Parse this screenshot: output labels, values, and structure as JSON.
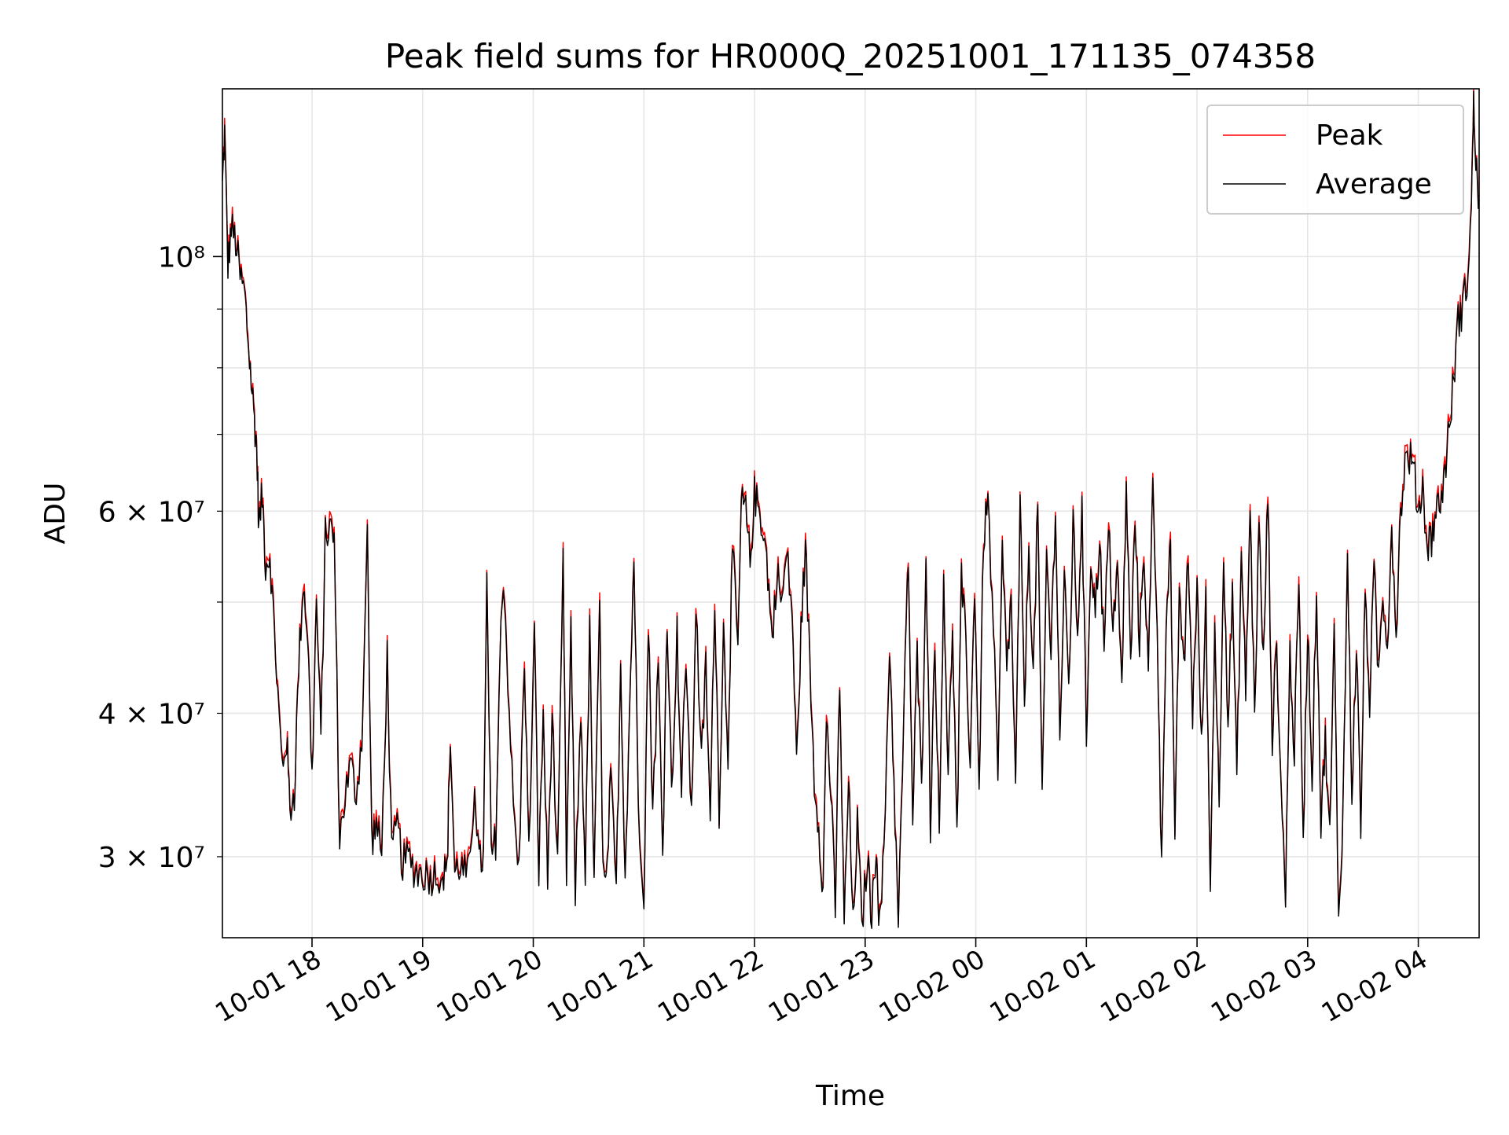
{
  "chart_data": {
    "type": "line",
    "title": "Peak field sums for HR000Q_20251001_171135_074358",
    "xlabel": "Time",
    "ylabel": "ADU",
    "yscale": "log",
    "ylim": [
      25500000,
      140000000
    ],
    "xlim_hours": [
      17.19,
      28.55
    ],
    "grid": true,
    "legend_position": "top-right",
    "x_ticks": [
      {
        "hour": 18,
        "label": "10-01 18"
      },
      {
        "hour": 19,
        "label": "10-01 19"
      },
      {
        "hour": 20,
        "label": "10-01 20"
      },
      {
        "hour": 21,
        "label": "10-01 21"
      },
      {
        "hour": 22,
        "label": "10-01 22"
      },
      {
        "hour": 23,
        "label": "10-01 23"
      },
      {
        "hour": 24,
        "label": "10-02 00"
      },
      {
        "hour": 25,
        "label": "10-02 01"
      },
      {
        "hour": 26,
        "label": "10-02 02"
      },
      {
        "hour": 27,
        "label": "10-02 03"
      },
      {
        "hour": 28,
        "label": "10-02 04"
      }
    ],
    "y_major_ticks": [
      {
        "value": 100000000,
        "label": "10⁸"
      }
    ],
    "y_minor_ticks": [
      {
        "value": 30000000,
        "label": "3 × 10⁷"
      },
      {
        "value": 40000000,
        "label": "4 × 10⁷"
      },
      {
        "value": 50000000,
        "label": ""
      },
      {
        "value": 60000000,
        "label": "6 × 10⁷"
      },
      {
        "value": 70000000,
        "label": ""
      },
      {
        "value": 80000000,
        "label": ""
      },
      {
        "value": 90000000,
        "label": ""
      }
    ],
    "series": [
      {
        "name": "Peak",
        "color": "#ff0000"
      },
      {
        "name": "Average",
        "color": "#000000"
      }
    ],
    "data_points": [
      [
        17.19,
        115000000
      ],
      [
        17.21,
        128000000
      ],
      [
        17.24,
        98000000
      ],
      [
        17.27,
        106000000
      ],
      [
        17.31,
        103000000
      ],
      [
        17.35,
        96000000
      ],
      [
        17.39,
        93000000
      ],
      [
        17.42,
        85000000
      ],
      [
        17.45,
        78000000
      ],
      [
        17.48,
        72000000
      ],
      [
        17.5,
        68000000
      ],
      [
        17.52,
        58000000
      ],
      [
        17.55,
        62000000
      ],
      [
        17.58,
        54000000
      ],
      [
        17.62,
        55000000
      ],
      [
        17.66,
        47000000
      ],
      [
        17.7,
        40000000
      ],
      [
        17.73,
        36000000
      ],
      [
        17.77,
        38000000
      ],
      [
        17.8,
        33000000
      ],
      [
        17.84,
        34000000
      ],
      [
        17.88,
        44000000
      ],
      [
        17.92,
        52000000
      ],
      [
        17.96,
        47000000
      ],
      [
        18.0,
        35000000
      ],
      [
        18.04,
        50000000
      ],
      [
        18.08,
        38000000
      ],
      [
        18.12,
        57000000
      ],
      [
        18.16,
        58000000
      ],
      [
        18.2,
        57000000
      ],
      [
        18.25,
        31000000
      ],
      [
        18.3,
        34000000
      ],
      [
        18.35,
        36000000
      ],
      [
        18.4,
        34000000
      ],
      [
        18.45,
        38000000
      ],
      [
        18.5,
        57000000
      ],
      [
        18.54,
        31000000
      ],
      [
        18.58,
        32000000
      ],
      [
        18.63,
        30000000
      ],
      [
        18.68,
        45000000
      ],
      [
        18.72,
        30000000
      ],
      [
        18.77,
        32000000
      ],
      [
        18.82,
        29500000
      ],
      [
        18.87,
        30000000
      ],
      [
        18.92,
        29300000
      ],
      [
        18.97,
        29000000
      ],
      [
        19.02,
        29000000
      ],
      [
        19.07,
        28800000
      ],
      [
        19.12,
        29000000
      ],
      [
        19.18,
        29000000
      ],
      [
        19.22,
        29100000
      ],
      [
        19.25,
        38000000
      ],
      [
        19.29,
        29000000
      ],
      [
        19.33,
        29500000
      ],
      [
        19.38,
        29000000
      ],
      [
        19.43,
        29200000
      ],
      [
        19.47,
        35000000
      ],
      [
        19.51,
        29500000
      ],
      [
        19.55,
        30000000
      ],
      [
        19.58,
        52000000
      ],
      [
        19.62,
        30000000
      ],
      [
        19.66,
        31000000
      ],
      [
        19.7,
        45000000
      ],
      [
        19.73,
        53000000
      ],
      [
        19.77,
        43000000
      ],
      [
        19.82,
        33000000
      ],
      [
        19.87,
        29000000
      ],
      [
        19.92,
        45000000
      ],
      [
        19.96,
        30000000
      ],
      [
        20.01,
        47000000
      ],
      [
        20.05,
        29000000
      ],
      [
        20.09,
        40000000
      ],
      [
        20.13,
        28500000
      ],
      [
        20.17,
        40000000
      ],
      [
        20.22,
        29000000
      ],
      [
        20.27,
        54000000
      ],
      [
        20.3,
        29000000
      ],
      [
        20.34,
        47000000
      ],
      [
        20.38,
        28000000
      ],
      [
        20.43,
        40000000
      ],
      [
        20.47,
        29000000
      ],
      [
        20.51,
        47000000
      ],
      [
        20.55,
        28000000
      ],
      [
        20.6,
        50000000
      ],
      [
        20.63,
        29000000
      ],
      [
        20.66,
        28000000
      ],
      [
        20.7,
        35000000
      ],
      [
        20.75,
        28000000
      ],
      [
        20.79,
        44000000
      ],
      [
        20.83,
        29000000
      ],
      [
        20.87,
        40000000
      ],
      [
        20.91,
        55000000
      ],
      [
        20.95,
        33000000
      ],
      [
        21.0,
        28000000
      ],
      [
        21.04,
        48000000
      ],
      [
        21.08,
        33000000
      ],
      [
        21.13,
        44000000
      ],
      [
        21.17,
        30000000
      ],
      [
        21.21,
        49000000
      ],
      [
        21.25,
        34000000
      ],
      [
        21.3,
        47000000
      ],
      [
        21.34,
        34000000
      ],
      [
        21.38,
        45000000
      ],
      [
        21.43,
        32000000
      ],
      [
        21.47,
        50000000
      ],
      [
        21.52,
        36000000
      ],
      [
        21.56,
        44000000
      ],
      [
        21.6,
        32000000
      ],
      [
        21.64,
        51000000
      ],
      [
        21.68,
        33000000
      ],
      [
        21.72,
        47000000
      ],
      [
        21.76,
        37000000
      ],
      [
        21.8,
        56000000
      ],
      [
        21.85,
        45000000
      ],
      [
        21.88,
        61000000
      ],
      [
        21.92,
        60000000
      ],
      [
        21.96,
        54000000
      ],
      [
        22.0,
        62000000
      ],
      [
        22.04,
        60000000
      ],
      [
        22.08,
        58000000
      ],
      [
        22.12,
        53000000
      ],
      [
        22.16,
        46000000
      ],
      [
        22.2,
        53000000
      ],
      [
        22.25,
        50000000
      ],
      [
        22.29,
        55000000
      ],
      [
        22.34,
        49000000
      ],
      [
        22.38,
        36000000
      ],
      [
        22.42,
        47000000
      ],
      [
        22.46,
        56000000
      ],
      [
        22.5,
        44000000
      ],
      [
        22.54,
        35000000
      ],
      [
        22.58,
        32000000
      ],
      [
        22.62,
        28000000
      ],
      [
        22.65,
        40000000
      ],
      [
        22.69,
        34000000
      ],
      [
        22.73,
        27000000
      ],
      [
        22.77,
        43000000
      ],
      [
        22.81,
        26000000
      ],
      [
        22.85,
        35000000
      ],
      [
        22.89,
        26000000
      ],
      [
        22.93,
        32000000
      ],
      [
        22.97,
        26000000
      ],
      [
        23.02,
        30000000
      ],
      [
        23.06,
        26500000
      ],
      [
        23.1,
        31000000
      ],
      [
        23.13,
        26000000
      ],
      [
        23.17,
        30000000
      ],
      [
        23.22,
        46000000
      ],
      [
        23.26,
        35000000
      ],
      [
        23.3,
        26000000
      ],
      [
        23.35,
        40000000
      ],
      [
        23.39,
        55000000
      ],
      [
        23.43,
        32000000
      ],
      [
        23.47,
        45000000
      ],
      [
        23.51,
        34000000
      ],
      [
        23.55,
        56000000
      ],
      [
        23.59,
        32000000
      ],
      [
        23.63,
        47000000
      ],
      [
        23.67,
        31000000
      ],
      [
        23.71,
        53000000
      ],
      [
        23.75,
        35000000
      ],
      [
        23.79,
        48000000
      ],
      [
        23.83,
        31000000
      ],
      [
        23.87,
        52000000
      ],
      [
        23.91,
        46000000
      ],
      [
        23.95,
        36000000
      ],
      [
        23.99,
        52000000
      ],
      [
        24.03,
        34000000
      ],
      [
        24.07,
        57000000
      ],
      [
        24.11,
        61000000
      ],
      [
        24.16,
        47000000
      ],
      [
        24.2,
        35000000
      ],
      [
        24.24,
        55000000
      ],
      [
        24.28,
        44000000
      ],
      [
        24.32,
        50000000
      ],
      [
        24.36,
        34000000
      ],
      [
        24.4,
        60000000
      ],
      [
        24.44,
        41000000
      ],
      [
        24.48,
        56000000
      ],
      [
        24.52,
        43000000
      ],
      [
        24.56,
        61000000
      ],
      [
        24.6,
        33000000
      ],
      [
        24.64,
        55000000
      ],
      [
        24.68,
        45000000
      ],
      [
        24.72,
        61000000
      ],
      [
        24.76,
        38000000
      ],
      [
        24.8,
        52000000
      ],
      [
        24.84,
        42000000
      ],
      [
        24.88,
        58000000
      ],
      [
        24.92,
        47000000
      ],
      [
        24.96,
        60000000
      ],
      [
        25.0,
        38000000
      ],
      [
        25.04,
        55000000
      ],
      [
        25.08,
        49000000
      ],
      [
        25.12,
        57000000
      ],
      [
        25.16,
        45000000
      ],
      [
        25.2,
        58000000
      ],
      [
        25.24,
        48000000
      ],
      [
        25.28,
        53000000
      ],
      [
        25.32,
        42000000
      ],
      [
        25.36,
        63000000
      ],
      [
        25.4,
        44000000
      ],
      [
        25.44,
        59000000
      ],
      [
        25.48,
        46000000
      ],
      [
        25.52,
        56000000
      ],
      [
        25.56,
        43000000
      ],
      [
        25.6,
        63000000
      ],
      [
        25.64,
        48000000
      ],
      [
        25.68,
        29000000
      ],
      [
        25.72,
        49000000
      ],
      [
        25.76,
        56000000
      ],
      [
        25.8,
        30000000
      ],
      [
        25.84,
        52000000
      ],
      [
        25.88,
        43000000
      ],
      [
        25.92,
        55000000
      ],
      [
        25.96,
        40000000
      ],
      [
        26.0,
        52000000
      ],
      [
        26.04,
        37000000
      ],
      [
        26.08,
        50000000
      ],
      [
        26.12,
        28000000
      ],
      [
        26.16,
        48000000
      ],
      [
        26.2,
        33000000
      ],
      [
        26.24,
        56000000
      ],
      [
        26.28,
        39000000
      ],
      [
        26.32,
        51000000
      ],
      [
        26.36,
        35000000
      ],
      [
        26.4,
        55000000
      ],
      [
        26.44,
        42000000
      ],
      [
        26.48,
        60000000
      ],
      [
        26.52,
        40000000
      ],
      [
        26.56,
        58000000
      ],
      [
        26.6,
        44000000
      ],
      [
        26.64,
        62000000
      ],
      [
        26.68,
        38000000
      ],
      [
        26.72,
        46000000
      ],
      [
        26.76,
        34000000
      ],
      [
        26.8,
        28000000
      ],
      [
        26.84,
        45000000
      ],
      [
        26.88,
        37000000
      ],
      [
        26.92,
        52000000
      ],
      [
        26.96,
        31000000
      ],
      [
        27.0,
        48000000
      ],
      [
        27.04,
        35000000
      ],
      [
        27.08,
        52000000
      ],
      [
        27.12,
        32000000
      ],
      [
        27.16,
        38000000
      ],
      [
        27.2,
        31000000
      ],
      [
        27.24,
        47000000
      ],
      [
        27.28,
        26500000
      ],
      [
        27.32,
        33000000
      ],
      [
        27.36,
        55000000
      ],
      [
        27.4,
        34000000
      ],
      [
        27.44,
        46000000
      ],
      [
        27.48,
        32000000
      ],
      [
        27.52,
        51000000
      ],
      [
        27.56,
        41000000
      ],
      [
        27.6,
        53000000
      ],
      [
        27.64,
        43000000
      ],
      [
        27.68,
        51000000
      ],
      [
        27.72,
        46000000
      ],
      [
        27.76,
        58000000
      ],
      [
        27.8,
        47000000
      ],
      [
        27.84,
        60000000
      ],
      [
        27.88,
        66000000
      ],
      [
        27.92,
        67000000
      ],
      [
        27.96,
        65000000
      ],
      [
        28.0,
        60000000
      ],
      [
        28.04,
        63000000
      ],
      [
        28.08,
        56000000
      ],
      [
        28.12,
        57000000
      ],
      [
        28.16,
        60000000
      ],
      [
        28.2,
        61000000
      ],
      [
        28.24,
        65000000
      ],
      [
        28.28,
        71000000
      ],
      [
        28.32,
        78000000
      ],
      [
        28.36,
        88000000
      ],
      [
        28.4,
        90000000
      ],
      [
        28.44,
        95000000
      ],
      [
        28.48,
        110000000
      ],
      [
        28.5,
        137000000
      ],
      [
        28.52,
        120000000
      ],
      [
        28.55,
        112000000
      ]
    ]
  }
}
